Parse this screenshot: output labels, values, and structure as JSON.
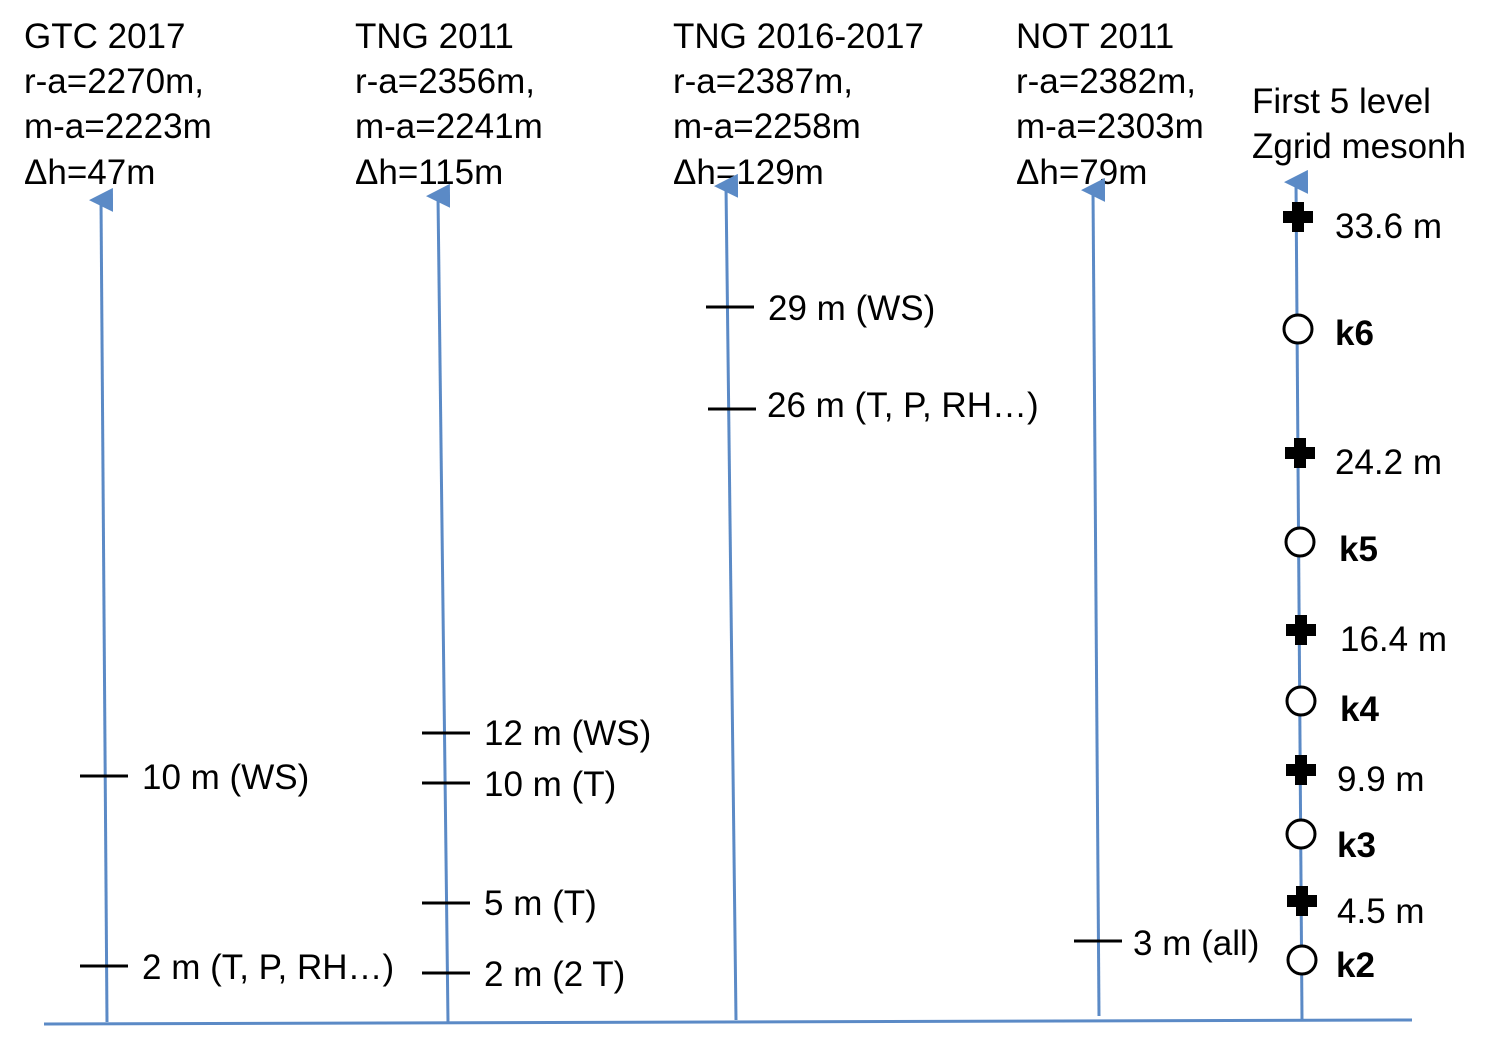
{
  "columns": [
    {
      "title": "GTC 2017",
      "lines": [
        "r-a=2270m,",
        "m-a=2223m",
        "Δh=47m"
      ],
      "levels": [
        "10 m (WS)",
        "2 m (T, P, RH…)"
      ]
    },
    {
      "title": "TNG 2011",
      "lines": [
        "r-a=2356m,",
        "m-a=2241m",
        "Δh=115m"
      ],
      "levels": [
        "12 m (WS)",
        "10 m (T)",
        "5 m (T)",
        "2 m (2 T)"
      ]
    },
    {
      "title": "TNG 2016-2017",
      "lines": [
        "r-a=2387m,",
        "m-a=2258m",
        "Δh=129m"
      ],
      "levels": [
        "29 m (WS)",
        "26 m (T, P, RH…)"
      ]
    },
    {
      "title": "NOT 2011",
      "lines": [
        "r-a=2382m,",
        "m-a=2303m",
        "Δh=79m"
      ],
      "levels": [
        "3 m (all)"
      ]
    }
  ],
  "model": {
    "title": [
      "First 5 level",
      "Zgrid mesonh"
    ],
    "heights": [
      "33.6 m",
      "24.2 m",
      "16.4 m",
      "9.9 m",
      "4.5 m"
    ],
    "levels": [
      "k6",
      "k5",
      "k4",
      "k3",
      "k2"
    ]
  }
}
